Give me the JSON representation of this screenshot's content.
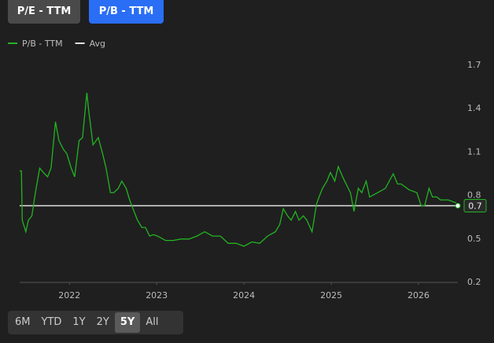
{
  "tabs": [
    "P/E - TTM",
    "P/B - TTM"
  ],
  "active_tab": 1,
  "ranges": [
    "6M",
    "YTD",
    "1Y",
    "2Y",
    "5Y",
    "All"
  ],
  "active_range": 4,
  "chart_data": {
    "type": "line",
    "x": [
      2021.43,
      2021.45,
      2021.46,
      2021.5,
      2021.53,
      2021.57,
      2021.61,
      2021.66,
      2021.7,
      2021.75,
      2021.79,
      2021.84,
      2021.88,
      2021.93,
      2021.97,
      2022.02,
      2022.06,
      2022.11,
      2022.15,
      2022.2,
      2022.22,
      2022.27,
      2022.33,
      2022.38,
      2022.42,
      2022.47,
      2022.51,
      2022.56,
      2022.6,
      2022.65,
      2022.69,
      2022.74,
      2022.78,
      2022.83,
      2022.87,
      2022.92,
      2022.96,
      2023.01,
      2023.1,
      2023.19,
      2023.28,
      2023.37,
      2023.46,
      2023.55,
      2023.64,
      2023.73,
      2023.82,
      2023.91,
      2024.0,
      2024.09,
      2024.18,
      2024.27,
      2024.36,
      2024.41,
      2024.45,
      2024.5,
      2024.54,
      2024.59,
      2024.63,
      2024.68,
      2024.72,
      2024.78,
      2024.83,
      2024.86,
      2024.9,
      2024.95,
      2024.99,
      2025.04,
      2025.08,
      2025.13,
      2025.17,
      2025.22,
      2025.26,
      2025.31,
      2025.35,
      2025.4,
      2025.44,
      2025.53,
      2025.62,
      2025.71,
      2025.76,
      2025.8,
      2025.89,
      2025.98,
      2026.03,
      2026.07,
      2026.12,
      2026.16,
      2026.21,
      2026.25,
      2026.34,
      2026.43
    ],
    "series": [
      {
        "name": "P/B - TTM",
        "color": "#22b422",
        "values": [
          0.97,
          0.97,
          0.63,
          0.55,
          0.63,
          0.66,
          0.82,
          0.99,
          0.96,
          0.93,
          0.99,
          1.31,
          1.18,
          1.12,
          1.09,
          0.99,
          0.93,
          1.18,
          1.2,
          1.51,
          1.39,
          1.15,
          1.2,
          1.09,
          0.99,
          0.82,
          0.82,
          0.85,
          0.9,
          0.85,
          0.77,
          0.69,
          0.63,
          0.58,
          0.58,
          0.52,
          0.53,
          0.52,
          0.49,
          0.49,
          0.5,
          0.5,
          0.52,
          0.55,
          0.52,
          0.52,
          0.47,
          0.47,
          0.45,
          0.48,
          0.47,
          0.52,
          0.55,
          0.6,
          0.71,
          0.66,
          0.63,
          0.69,
          0.63,
          0.66,
          0.63,
          0.55,
          0.74,
          0.79,
          0.85,
          0.9,
          0.96,
          0.9,
          1.0,
          0.93,
          0.88,
          0.82,
          0.69,
          0.85,
          0.82,
          0.9,
          0.79,
          0.82,
          0.85,
          0.95,
          0.88,
          0.88,
          0.84,
          0.82,
          0.73,
          0.73,
          0.85,
          0.79,
          0.79,
          0.77,
          0.77,
          0.75
        ]
      }
    ],
    "avg": {
      "name": "Avg",
      "color": "#e0e0e0",
      "value": 0.73,
      "label": "0.7"
    },
    "xlim": [
      2021.43,
      2026.45
    ],
    "xticks": [
      2022,
      2023,
      2024,
      2025,
      2026
    ],
    "ylim": [
      0.2,
      1.7
    ],
    "yticks": [
      1.7,
      1.4,
      1.1,
      0.8,
      0.5,
      0.2
    ]
  }
}
